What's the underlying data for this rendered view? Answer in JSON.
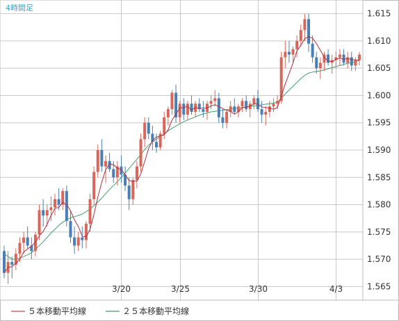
{
  "chart_data": {
    "type": "candlestick",
    "title": "4時間足",
    "ylim": [
      1.5625,
      1.6175
    ],
    "y_ticks": [
      "1.565",
      "1.570",
      "1.575",
      "1.580",
      "1.585",
      "1.590",
      "1.595",
      "1.600",
      "1.605",
      "1.610",
      "1.615"
    ],
    "x_ticks": [
      "3/20",
      "3/25",
      "3/30",
      "4/3"
    ],
    "grid": true,
    "legend": [
      {
        "label": "５本移動平均線",
        "color": "#c0474d"
      },
      {
        "label": "２５本移動平均線",
        "color": "#3fa16a"
      }
    ],
    "colors": {
      "up_candle": "#d9665a",
      "down_candle": "#4a7fb5",
      "ma5": "#b03040",
      "ma25": "#3fa16a",
      "grid": "#c8c8c8",
      "title": "#3aa3c8"
    },
    "candles": [
      [
        1.5715,
        1.5725,
        1.5665,
        1.5675
      ],
      [
        1.5675,
        1.5715,
        1.5655,
        1.5695
      ],
      [
        1.5695,
        1.5705,
        1.5665,
        1.569
      ],
      [
        1.569,
        1.572,
        1.568,
        1.571
      ],
      [
        1.571,
        1.574,
        1.5695,
        1.573
      ],
      [
        1.573,
        1.575,
        1.571,
        1.574
      ],
      [
        1.574,
        1.576,
        1.572,
        1.5725
      ],
      [
        1.5725,
        1.574,
        1.57,
        1.5715
      ],
      [
        1.5715,
        1.575,
        1.5705,
        1.5745
      ],
      [
        1.5745,
        1.58,
        1.5735,
        1.579
      ],
      [
        1.579,
        1.581,
        1.576,
        1.578
      ],
      [
        1.578,
        1.58,
        1.576,
        1.579
      ],
      [
        1.579,
        1.5815,
        1.577,
        1.5795
      ],
      [
        1.5795,
        1.582,
        1.578,
        1.581
      ],
      [
        1.581,
        1.583,
        1.579,
        1.58
      ],
      [
        1.58,
        1.583,
        1.579,
        1.5825
      ],
      [
        1.5825,
        1.5835,
        1.576,
        1.577
      ],
      [
        1.577,
        1.579,
        1.573,
        1.574
      ],
      [
        1.574,
        1.576,
        1.571,
        1.5725
      ],
      [
        1.5725,
        1.575,
        1.5715,
        1.574
      ],
      [
        1.574,
        1.576,
        1.572,
        1.5735
      ],
      [
        1.5735,
        1.577,
        1.572,
        1.5765
      ],
      [
        1.5765,
        1.582,
        1.575,
        1.581
      ],
      [
        1.581,
        1.587,
        1.58,
        1.586
      ],
      [
        1.586,
        1.591,
        1.585,
        1.59
      ],
      [
        1.59,
        1.592,
        1.586,
        1.587
      ],
      [
        1.587,
        1.589,
        1.584,
        1.588
      ],
      [
        1.588,
        1.5895,
        1.586,
        1.5865
      ],
      [
        1.5865,
        1.588,
        1.584,
        1.585
      ],
      [
        1.585,
        1.588,
        1.5835,
        1.587
      ],
      [
        1.587,
        1.589,
        1.584,
        1.5855
      ],
      [
        1.5855,
        1.587,
        1.5825,
        1.5835
      ],
      [
        1.5835,
        1.585,
        1.579,
        1.581
      ],
      [
        1.581,
        1.585,
        1.58,
        1.5845
      ],
      [
        1.5845,
        1.588,
        1.583,
        1.587
      ],
      [
        1.587,
        1.593,
        1.586,
        1.592
      ],
      [
        1.592,
        1.596,
        1.5905,
        1.595
      ],
      [
        1.595,
        1.596,
        1.592,
        1.593
      ],
      [
        1.593,
        1.5945,
        1.59,
        1.5915
      ],
      [
        1.5915,
        1.593,
        1.5895,
        1.5905
      ],
      [
        1.5905,
        1.5935,
        1.59,
        1.593
      ],
      [
        1.593,
        1.597,
        1.592,
        1.596
      ],
      [
        1.596,
        1.598,
        1.5945,
        1.5975
      ],
      [
        1.5975,
        1.601,
        1.5965,
        1.6005
      ],
      [
        1.6005,
        1.602,
        1.595,
        1.596
      ],
      [
        1.596,
        1.599,
        1.595,
        1.5985
      ],
      [
        1.5985,
        1.5995,
        1.5955,
        1.5965
      ],
      [
        1.5965,
        1.599,
        1.5955,
        1.5985
      ],
      [
        1.5985,
        1.6,
        1.5965,
        1.597
      ],
      [
        1.597,
        1.599,
        1.596,
        1.5985
      ],
      [
        1.5985,
        1.5995,
        1.597,
        1.5975
      ],
      [
        1.5975,
        1.599,
        1.596,
        1.597
      ],
      [
        1.597,
        1.599,
        1.5955,
        1.5985
      ],
      [
        1.5985,
        1.6,
        1.5975,
        1.599
      ],
      [
        1.599,
        1.601,
        1.598,
        1.5995
      ],
      [
        1.5995,
        1.6005,
        1.595,
        1.596
      ],
      [
        1.596,
        1.5975,
        1.594,
        1.595
      ],
      [
        1.595,
        1.5975,
        1.594,
        1.597
      ],
      [
        1.597,
        1.599,
        1.596,
        1.598
      ],
      [
        1.598,
        1.5995,
        1.5965,
        1.597
      ],
      [
        1.597,
        1.5985,
        1.596,
        1.598
      ],
      [
        1.598,
        1.5995,
        1.597,
        1.599
      ],
      [
        1.599,
        1.6,
        1.597,
        1.5975
      ],
      [
        1.5975,
        1.599,
        1.596,
        1.5985
      ],
      [
        1.5985,
        1.6,
        1.5975,
        1.5995
      ],
      [
        1.5995,
        1.601,
        1.597,
        1.5975
      ],
      [
        1.5975,
        1.599,
        1.595,
        1.5965
      ],
      [
        1.5965,
        1.598,
        1.5945,
        1.597
      ],
      [
        1.597,
        1.599,
        1.596,
        1.598
      ],
      [
        1.598,
        1.5995,
        1.597,
        1.5985
      ],
      [
        1.5985,
        1.6,
        1.5975,
        1.599
      ],
      [
        1.599,
        1.608,
        1.5985,
        1.607
      ],
      [
        1.607,
        1.61,
        1.605,
        1.608
      ],
      [
        1.608,
        1.61,
        1.606,
        1.6075
      ],
      [
        1.6075,
        1.609,
        1.606,
        1.6085
      ],
      [
        1.6085,
        1.611,
        1.607,
        1.61
      ],
      [
        1.61,
        1.613,
        1.609,
        1.612
      ],
      [
        1.612,
        1.615,
        1.61,
        1.614
      ],
      [
        1.614,
        1.615,
        1.608,
        1.6095
      ],
      [
        1.6095,
        1.611,
        1.606,
        1.607
      ],
      [
        1.607,
        1.608,
        1.604,
        1.605
      ],
      [
        1.605,
        1.607,
        1.603,
        1.606
      ],
      [
        1.606,
        1.608,
        1.6045,
        1.6075
      ],
      [
        1.6075,
        1.6085,
        1.6055,
        1.606
      ],
      [
        1.606,
        1.6075,
        1.604,
        1.6065
      ],
      [
        1.6065,
        1.608,
        1.605,
        1.607
      ],
      [
        1.607,
        1.6085,
        1.6055,
        1.6075
      ],
      [
        1.6075,
        1.6085,
        1.6055,
        1.606
      ],
      [
        1.606,
        1.608,
        1.605,
        1.607
      ],
      [
        1.607,
        1.608,
        1.6045,
        1.6055
      ],
      [
        1.6055,
        1.607,
        1.6045,
        1.6065
      ],
      [
        1.6065,
        1.608,
        1.6055,
        1.6075
      ]
    ],
    "ma25": [
      1.571,
      1.5705,
      1.57,
      1.57,
      1.5702,
      1.5705,
      1.5708,
      1.5712,
      1.5718,
      1.5725,
      1.5732,
      1.574,
      1.5748,
      1.5755,
      1.5762,
      1.5768,
      1.5772,
      1.5776,
      1.5778,
      1.578,
      1.5783,
      1.5787,
      1.5792,
      1.5798,
      1.5805,
      1.5812,
      1.582,
      1.5828,
      1.5835,
      1.5842,
      1.585,
      1.5858,
      1.5866,
      1.5875,
      1.5883,
      1.5892,
      1.5901,
      1.5909,
      1.5915,
      1.592,
      1.5925,
      1.593,
      1.5935,
      1.594,
      1.5944,
      1.5948,
      1.5952,
      1.5955,
      1.5958,
      1.5961,
      1.5964,
      1.5966,
      1.5968,
      1.597,
      1.5971,
      1.5972,
      1.5973,
      1.5974,
      1.5975,
      1.5976,
      1.5977,
      1.5978,
      1.5979,
      1.598,
      1.5981,
      1.5982,
      1.5983,
      1.5984,
      1.5985,
      1.5986,
      1.5988,
      1.5995,
      1.6003,
      1.601,
      1.6017,
      1.6024,
      1.6031,
      1.6037,
      1.6041,
      1.6043,
      1.6044,
      1.6045,
      1.6047,
      1.6049,
      1.6051,
      1.6053,
      1.6055,
      1.6057,
      1.6059,
      1.606,
      1.6062,
      1.6064
    ]
  }
}
